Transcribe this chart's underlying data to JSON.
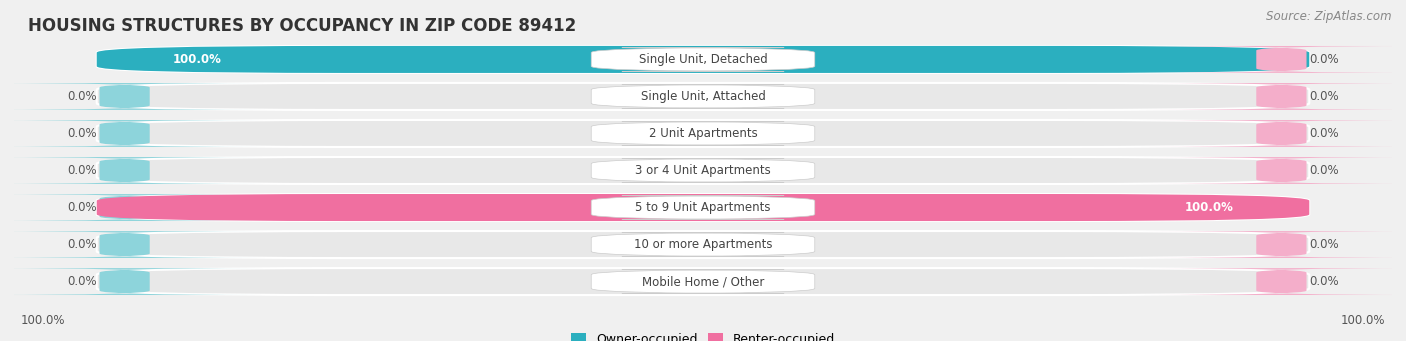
{
  "title": "HOUSING STRUCTURES BY OCCUPANCY IN ZIP CODE 89412",
  "source": "Source: ZipAtlas.com",
  "categories": [
    "Single Unit, Detached",
    "Single Unit, Attached",
    "2 Unit Apartments",
    "3 or 4 Unit Apartments",
    "5 to 9 Unit Apartments",
    "10 or more Apartments",
    "Mobile Home / Other"
  ],
  "owner_values": [
    100.0,
    0.0,
    0.0,
    0.0,
    0.0,
    0.0,
    0.0
  ],
  "renter_values": [
    0.0,
    0.0,
    0.0,
    0.0,
    100.0,
    0.0,
    0.0
  ],
  "owner_color": "#2BAFBF",
  "renter_color": "#F06FA0",
  "owner_color_light": "#8DD4DB",
  "renter_color_light": "#F4AECA",
  "bg_color": "#F0F0F0",
  "bar_bg_color": "#E0E0E0",
  "row_bg_color": "#E8E8E8",
  "title_fontsize": 12,
  "label_fontsize": 8.5,
  "value_fontsize": 8.5,
  "legend_fontsize": 9,
  "source_fontsize": 8.5,
  "figsize": [
    14.06,
    3.41
  ],
  "dpi": 100,
  "legend_owner_label": "Owner-occupied",
  "legend_renter_label": "Renter-occupied",
  "footer_left_owner": "100.0%",
  "footer_right_renter": "100.0%"
}
